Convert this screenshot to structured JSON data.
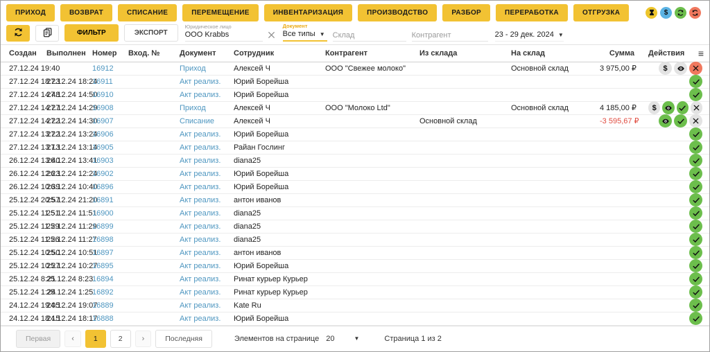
{
  "colors": {
    "accent_yellow": "#F2C233",
    "link_blue": "#4E96C0",
    "green": "#6CBE4C",
    "red_circle": "#F0785E",
    "gray_circle": "#E3E3E3",
    "negative_sum": "#E04B3F",
    "status_blue": "#5BB3E4",
    "status_yellow": "#EDC52C"
  },
  "header": {
    "nav_buttons": [
      "ПРИХОД",
      "ВОЗВРАТ",
      "СПИСАНИЕ",
      "ПЕРЕМЕЩЕНИЕ",
      "ИНВЕНТАРИЗАЦИЯ",
      "ПРОИЗВОДСТВО",
      "РАЗБОР",
      "ПЕРЕРАБОТКА",
      "ОТГРУЗКА"
    ],
    "status_icons": [
      {
        "icon": "hourglass",
        "bg": "#EDC52C",
        "name": "hourglass-icon"
      },
      {
        "icon": "dollar",
        "bg": "#5BB3E4",
        "name": "dollar-icon"
      },
      {
        "icon": "refresh-cw",
        "bg": "#6CBE4C",
        "name": "refresh-clockwise-icon"
      },
      {
        "icon": "refresh-ccw",
        "bg": "#F0785E",
        "name": "refresh-counterclockwise-icon"
      }
    ]
  },
  "toolbar": {
    "filter_label": "ФИЛЬТР",
    "export_label": "ЭКСПОРТ",
    "legal_entity": {
      "label": "Юридическое лицо",
      "value": "ООО Krabbs"
    },
    "document_filter": {
      "label": "Документ",
      "value": "Все типы"
    },
    "warehouse_placeholder": "Склад",
    "counterparty_placeholder": "Контрагент",
    "date_range": "23 - 29 дек. 2024"
  },
  "table": {
    "columns": [
      "Создан",
      "Выполнен",
      "Номер",
      "Вход. №",
      "Документ",
      "Сотрудник",
      "Контрагент",
      "Из склада",
      "На склад",
      "Сумма",
      "Действия"
    ],
    "rows": [
      {
        "created": "27.12.24 19:40",
        "completed": "",
        "number": "16912",
        "entry_no": "",
        "doc": "Приход",
        "employee": "Алексей Ч",
        "counterparty": "ООО \"Свежее молоко\"",
        "from_wh": "",
        "to_wh": "Основной склад",
        "amount": "3 975,00 ₽",
        "neg": false,
        "actions": [
          [
            "dollar",
            "gray"
          ],
          [
            "eye",
            "gray"
          ],
          [
            "x",
            "red"
          ]
        ]
      },
      {
        "created": "27.12.24 18:23",
        "completed": "27.12.24 18:24",
        "number": "16911",
        "entry_no": "",
        "doc": "Акт реализ.",
        "employee": "Юрий Борейша",
        "counterparty": "",
        "from_wh": "",
        "to_wh": "",
        "amount": "",
        "neg": false,
        "actions": [
          [
            "check",
            "green"
          ]
        ]
      },
      {
        "created": "27.12.24 14:48",
        "completed": "27.12.24 14:50",
        "number": "16910",
        "entry_no": "",
        "doc": "Акт реализ.",
        "employee": "Юрий Борейша",
        "counterparty": "",
        "from_wh": "",
        "to_wh": "",
        "amount": "",
        "neg": false,
        "actions": [
          [
            "check",
            "green"
          ]
        ]
      },
      {
        "created": "27.12.24 14:27",
        "completed": "27.12.24 14:29",
        "number": "16908",
        "entry_no": "",
        "doc": "Приход",
        "employee": "Алексей Ч",
        "counterparty": "ООО \"Молоко Ltd\"",
        "from_wh": "",
        "to_wh": "Основной склад",
        "amount": "4 185,00 ₽",
        "neg": false,
        "actions": [
          [
            "dollar",
            "gray"
          ],
          [
            "eye",
            "green"
          ],
          [
            "check",
            "green"
          ],
          [
            "x",
            "gray"
          ]
        ]
      },
      {
        "created": "27.12.24 14:22",
        "completed": "27.12.24 14:30",
        "number": "16907",
        "entry_no": "",
        "doc": "Списание",
        "employee": "Алексей Ч",
        "counterparty": "",
        "from_wh": "Основной склад",
        "to_wh": "",
        "amount": "-3 595,67 ₽",
        "neg": true,
        "actions": [
          [
            "eye",
            "green"
          ],
          [
            "check",
            "green"
          ],
          [
            "x",
            "gray"
          ]
        ]
      },
      {
        "created": "27.12.24 13:22",
        "completed": "27.12.24 13:24",
        "number": "16906",
        "entry_no": "",
        "doc": "Акт реализ.",
        "employee": "Юрий Борейша",
        "counterparty": "",
        "from_wh": "",
        "to_wh": "",
        "amount": "",
        "neg": false,
        "actions": [
          [
            "check",
            "green"
          ]
        ]
      },
      {
        "created": "27.12.24 13:13",
        "completed": "27.12.24 13:14",
        "number": "16905",
        "entry_no": "",
        "doc": "Акт реализ.",
        "employee": "Райан Гослинг",
        "counterparty": "",
        "from_wh": "",
        "to_wh": "",
        "amount": "",
        "neg": false,
        "actions": [
          [
            "check",
            "green"
          ]
        ]
      },
      {
        "created": "26.12.24 13:40",
        "completed": "26.12.24 13:41",
        "number": "16903",
        "entry_no": "",
        "doc": "Акт реализ.",
        "employee": "diana25",
        "counterparty": "",
        "from_wh": "",
        "to_wh": "",
        "amount": "",
        "neg": false,
        "actions": [
          [
            "check",
            "green"
          ]
        ]
      },
      {
        "created": "26.12.24 12:23",
        "completed": "26.12.24 12:24",
        "number": "16902",
        "entry_no": "",
        "doc": "Акт реализ.",
        "employee": "Юрий Борейша",
        "counterparty": "",
        "from_wh": "",
        "to_wh": "",
        "amount": "",
        "neg": false,
        "actions": [
          [
            "check",
            "green"
          ]
        ]
      },
      {
        "created": "26.12.24 10:39",
        "completed": "26.12.24 10:40",
        "number": "16896",
        "entry_no": "",
        "doc": "Акт реализ.",
        "employee": "Юрий Борейша",
        "counterparty": "",
        "from_wh": "",
        "to_wh": "",
        "amount": "",
        "neg": false,
        "actions": [
          [
            "check",
            "green"
          ]
        ]
      },
      {
        "created": "25.12.24 20:57",
        "completed": "25.12.24 21:20",
        "number": "16891",
        "entry_no": "",
        "doc": "Акт реализ.",
        "employee": "антон иванов",
        "counterparty": "",
        "from_wh": "",
        "to_wh": "",
        "amount": "",
        "neg": false,
        "actions": [
          [
            "check",
            "green"
          ]
        ]
      },
      {
        "created": "25.12.24 11:51",
        "completed": "25.12.24 11:51",
        "number": "16900",
        "entry_no": "",
        "doc": "Акт реализ.",
        "employee": "diana25",
        "counterparty": "",
        "from_wh": "",
        "to_wh": "",
        "amount": "",
        "neg": false,
        "actions": [
          [
            "check",
            "green"
          ]
        ]
      },
      {
        "created": "25.12.24 11:29",
        "completed": "25.12.24 11:29",
        "number": "16899",
        "entry_no": "",
        "doc": "Акт реализ.",
        "employee": "diana25",
        "counterparty": "",
        "from_wh": "",
        "to_wh": "",
        "amount": "",
        "neg": false,
        "actions": [
          [
            "check",
            "green"
          ]
        ]
      },
      {
        "created": "25.12.24 11:26",
        "completed": "25.12.24 11:27",
        "number": "16898",
        "entry_no": "",
        "doc": "Акт реализ.",
        "employee": "diana25",
        "counterparty": "",
        "from_wh": "",
        "to_wh": "",
        "amount": "",
        "neg": false,
        "actions": [
          [
            "check",
            "green"
          ]
        ]
      },
      {
        "created": "25.12.24 10:50",
        "completed": "25.12.24 10:51",
        "number": "16897",
        "entry_no": "",
        "doc": "Акт реализ.",
        "employee": "антон иванов",
        "counterparty": "",
        "from_wh": "",
        "to_wh": "",
        "amount": "",
        "neg": false,
        "actions": [
          [
            "check",
            "green"
          ]
        ]
      },
      {
        "created": "25.12.24 10:27",
        "completed": "25.12.24 10:27",
        "number": "16895",
        "entry_no": "",
        "doc": "Акт реализ.",
        "employee": "Юрий Борейша",
        "counterparty": "",
        "from_wh": "",
        "to_wh": "",
        "amount": "",
        "neg": false,
        "actions": [
          [
            "check",
            "green"
          ]
        ]
      },
      {
        "created": "25.12.24 8:21",
        "completed": "25.12.24 8:23",
        "number": "16894",
        "entry_no": "",
        "doc": "Акт реализ.",
        "employee": "Ринат курьер Курьер",
        "counterparty": "",
        "from_wh": "",
        "to_wh": "",
        "amount": "",
        "neg": false,
        "actions": [
          [
            "check",
            "green"
          ]
        ]
      },
      {
        "created": "25.12.24 1:24",
        "completed": "25.12.24 1:25",
        "number": "16892",
        "entry_no": "",
        "doc": "Акт реализ.",
        "employee": "Ринат курьер Курьер",
        "counterparty": "",
        "from_wh": "",
        "to_wh": "",
        "amount": "",
        "neg": false,
        "actions": [
          [
            "check",
            "green"
          ]
        ]
      },
      {
        "created": "24.12.24 19:05",
        "completed": "24.12.24 19:07",
        "number": "16889",
        "entry_no": "",
        "doc": "Акт реализ.",
        "employee": "Kate Ru",
        "counterparty": "",
        "from_wh": "",
        "to_wh": "",
        "amount": "",
        "neg": false,
        "actions": [
          [
            "check",
            "green"
          ]
        ]
      },
      {
        "created": "24.12.24 18:15",
        "completed": "24.12.24 18:17",
        "number": "16888",
        "entry_no": "",
        "doc": "Акт реализ.",
        "employee": "Юрий Борейша",
        "counterparty": "",
        "from_wh": "",
        "to_wh": "",
        "amount": "",
        "neg": false,
        "actions": [
          [
            "check",
            "green"
          ]
        ]
      }
    ]
  },
  "pagination": {
    "first": "Первая",
    "prev": "‹",
    "pages": [
      "1",
      "2"
    ],
    "active_page": "1",
    "next": "›",
    "last": "Последняя",
    "per_page_label": "Элементов на странице",
    "per_page": "20",
    "info": "Страница 1 из 2"
  }
}
